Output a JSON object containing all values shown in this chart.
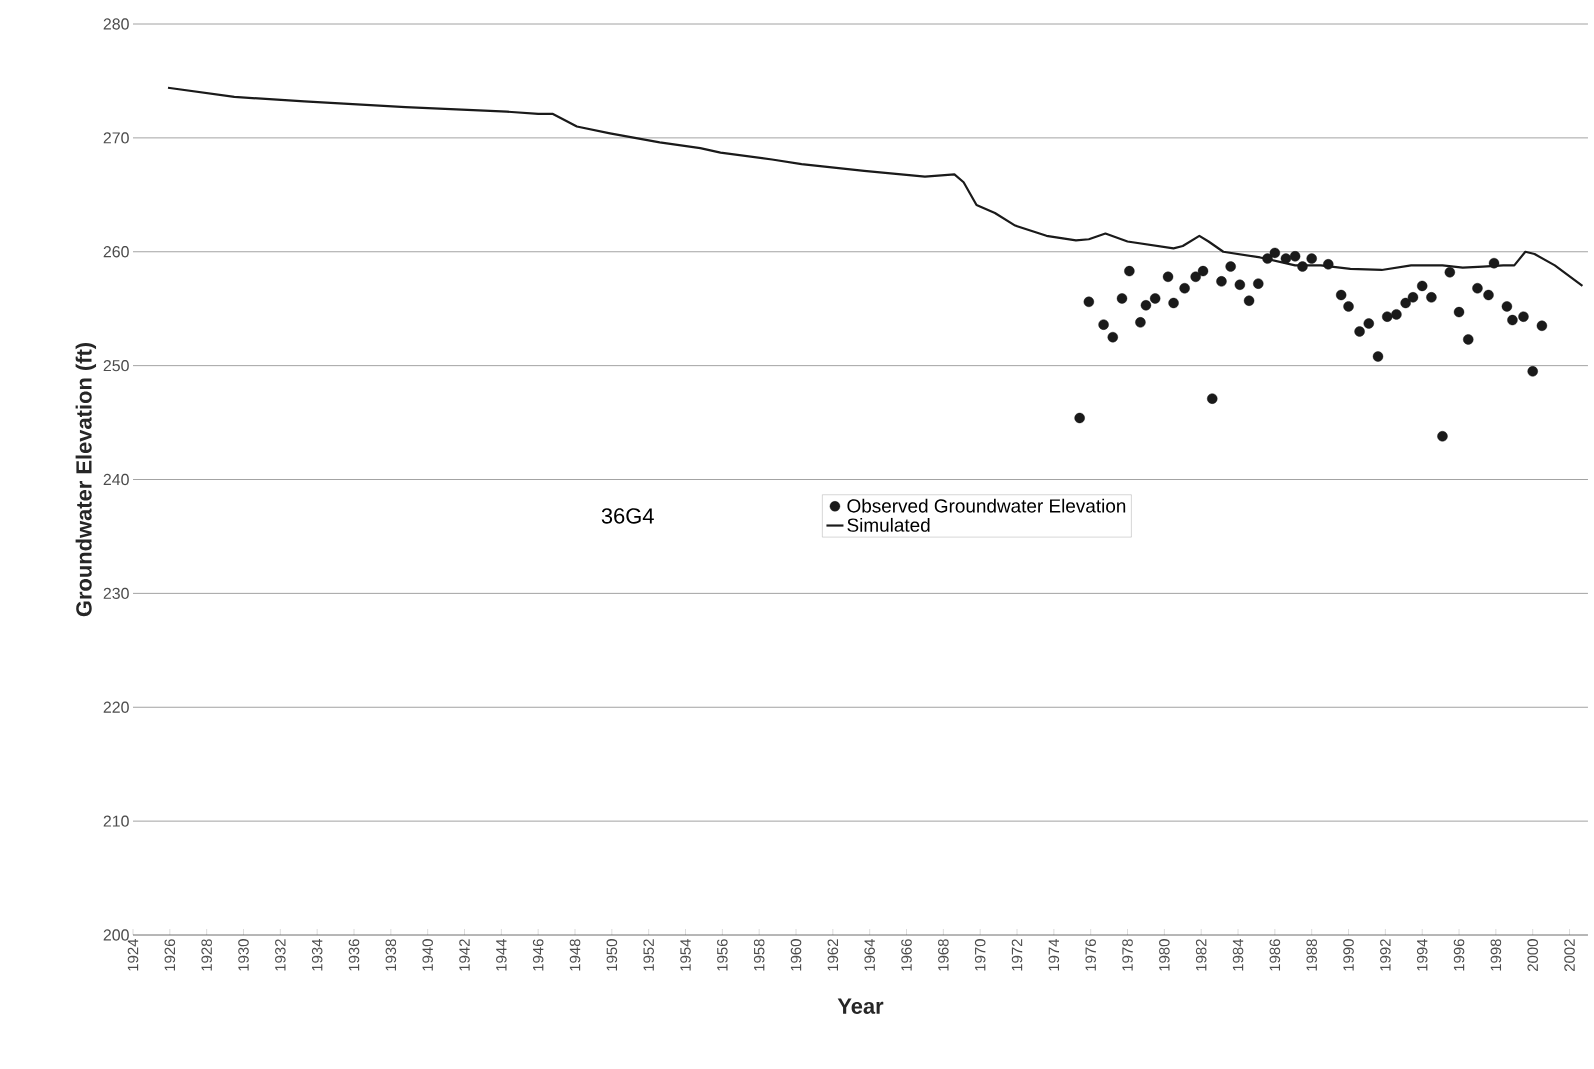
{
  "chart_data": {
    "type": "scatter",
    "xlabel": "Year",
    "ylabel": "Groundwater Elevation (ft)",
    "annotations": [
      "36G4"
    ],
    "xlim": [
      1924,
      2003
    ],
    "ylim": [
      200,
      280
    ],
    "xticks": [
      1924,
      1926,
      1928,
      1930,
      1932,
      1934,
      1936,
      1938,
      1940,
      1942,
      1944,
      1946,
      1948,
      1950,
      1952,
      1954,
      1956,
      1958,
      1960,
      1962,
      1964,
      1966,
      1968,
      1970,
      1972,
      1974,
      1976,
      1978,
      1980,
      1982,
      1984,
      1986,
      1988,
      1990,
      1992,
      1994,
      1996,
      1998,
      2000,
      2002
    ],
    "yticks": [
      200,
      210,
      220,
      230,
      240,
      250,
      260,
      270,
      280
    ],
    "grid": "y",
    "legend": "center",
    "series": [
      {
        "name": "Observed Groundwater Elevation",
        "marker": "circle",
        "color": "#1a1a1a",
        "x": [
          1975.4,
          1975.9,
          1976.7,
          1977.2,
          1977.7,
          1978.1,
          1978.7,
          1979.0,
          1979.5,
          1980.2,
          1980.5,
          1981.1,
          1981.7,
          1982.1,
          1982.6,
          1983.1,
          1983.6,
          1984.1,
          1984.6,
          1985.1,
          1985.6,
          1986.0,
          1986.6,
          1987.1,
          1987.5,
          1988.0,
          1988.9,
          1989.6,
          1990.0,
          1990.6,
          1991.1,
          1991.6,
          1992.1,
          1992.6,
          1993.1,
          1993.5,
          1994.0,
          1994.5,
          1995.1,
          1995.5,
          1996.0,
          1996.5,
          1997.0,
          1997.6,
          1997.9,
          1998.6,
          1998.9,
          1999.5,
          2000.0,
          2000.5
        ],
        "values": [
          245.4,
          255.6,
          253.6,
          252.5,
          255.9,
          258.3,
          253.8,
          255.3,
          255.9,
          257.8,
          255.5,
          256.8,
          257.8,
          258.3,
          247.1,
          257.4,
          258.7,
          257.1,
          255.7,
          257.2,
          259.4,
          259.9,
          259.4,
          259.6,
          258.7,
          259.4,
          258.9,
          256.2,
          255.2,
          253.0,
          253.7,
          250.8,
          254.3,
          254.5,
          255.5,
          256.0,
          257.0,
          256.0,
          243.8,
          258.2,
          254.7,
          252.3,
          256.8,
          256.2,
          259.0,
          255.2,
          254.0,
          254.3,
          249.5,
          253.5
        ]
      },
      {
        "name": "Simulated",
        "type": "line",
        "line_style": "solid",
        "color": "#1a1a1a",
        "x": [
          1925.9,
          1929.5,
          1933.3,
          1938.8,
          1944.3,
          1946.0,
          1946.8,
          1947.4,
          1948.1,
          1949.9,
          1952.6,
          1954.8,
          1955.9,
          1958.7,
          1960.3,
          1963.7,
          1967.0,
          1968.6,
          1969.1,
          1969.8,
          1970.8,
          1971.9,
          1973.6,
          1975.2,
          1975.9,
          1976.8,
          1978.0,
          1980.5,
          1981.0,
          1981.9,
          1982.4,
          1983.2,
          1985.2,
          1987.1,
          1988.5,
          1990.1,
          1991.8,
          1993.4,
          1995.1,
          1996.2,
          1997.3,
          1998.4,
          1999.0,
          1999.6,
          2000.1,
          2001.2,
          2002.7
        ],
        "values": [
          274.4,
          273.6,
          273.2,
          272.7,
          272.3,
          272.1,
          272.1,
          271.6,
          271.0,
          270.4,
          269.6,
          269.1,
          268.7,
          268.1,
          267.7,
          267.1,
          266.6,
          266.8,
          266.1,
          264.1,
          263.4,
          262.3,
          261.4,
          261.0,
          261.1,
          261.6,
          260.9,
          260.3,
          260.5,
          261.4,
          260.9,
          260.0,
          259.5,
          258.8,
          258.8,
          258.5,
          258.4,
          258.8,
          258.8,
          258.6,
          258.7,
          258.8,
          258.8,
          260.0,
          259.8,
          258.8,
          257.0
        ]
      }
    ]
  }
}
